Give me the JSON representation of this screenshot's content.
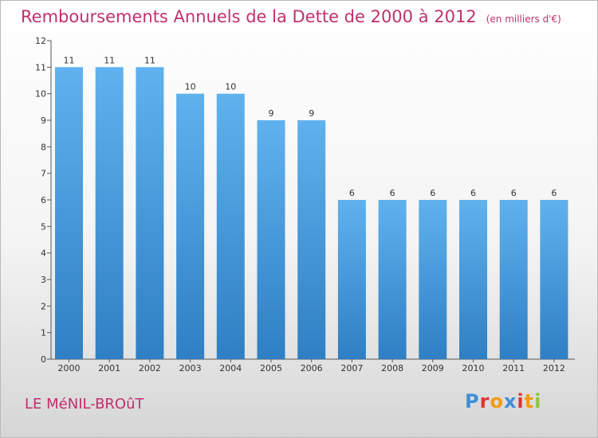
{
  "chart_data": {
    "type": "bar",
    "title": "Remboursements Annuels de la Dette de 2000 à 2012",
    "subtitle": "(en milliers d'€)",
    "categories": [
      "2000",
      "2001",
      "2002",
      "2003",
      "2004",
      "2005",
      "2006",
      "2007",
      "2008",
      "2009",
      "2010",
      "2011",
      "2012"
    ],
    "values": [
      11,
      11,
      11,
      10,
      10,
      9,
      9,
      6,
      6,
      6,
      6,
      6,
      6
    ],
    "ylim": [
      0,
      12
    ],
    "yticks": [
      0,
      1,
      2,
      3,
      4,
      5,
      6,
      7,
      8,
      9,
      10,
      11,
      12
    ],
    "xlabel": "",
    "ylabel": "",
    "grid": false,
    "bar_color": "#4a9fe0"
  },
  "footer": {
    "commune": "LE MéNIL-BROûT",
    "logo": "Proxiti",
    "logo_colors": [
      "#3f8fd6",
      "#e3342f",
      "#f39c12",
      "#3f8fd6",
      "#e3342f",
      "#f39c12",
      "#8ec641"
    ]
  },
  "colors": {
    "title": "#c0306f",
    "axis": "#555555"
  }
}
